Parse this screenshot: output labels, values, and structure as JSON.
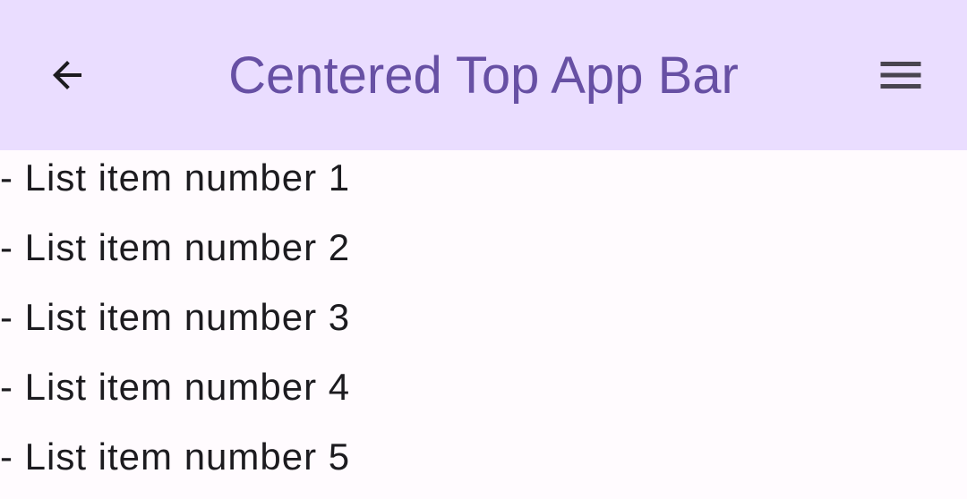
{
  "app_bar": {
    "title": "Centered Top App Bar",
    "navigation_icon": "arrow-back-icon",
    "action_icon": "menu-icon",
    "background_color": "#EADDFF",
    "title_color": "#6750A4"
  },
  "list": {
    "items": [
      "- List item number 1",
      "- List item number 2",
      "- List item number 3",
      "- List item number 4",
      "- List item number 5"
    ]
  }
}
